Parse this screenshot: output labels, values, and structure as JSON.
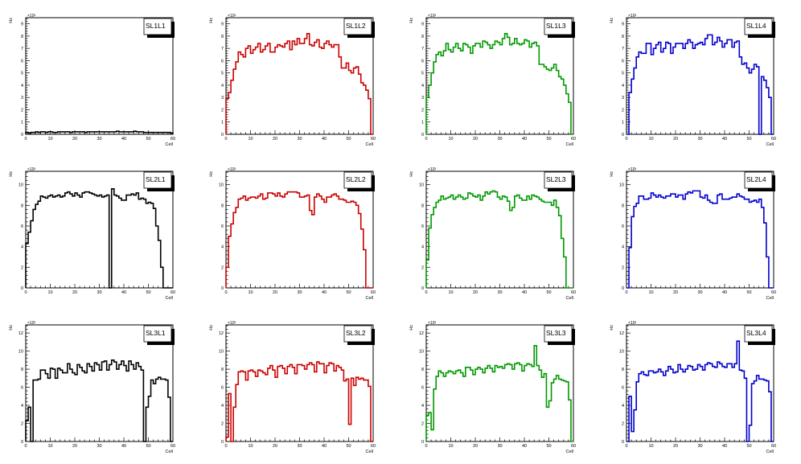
{
  "chart_data": [
    {
      "type": "bar",
      "title": "SL1L1",
      "xlabel": "Cell",
      "ylabel": "Hz",
      "exponent": "×10³",
      "xlim": [
        0,
        60
      ],
      "ylim": [
        0,
        9.5
      ],
      "ytick_step": 1,
      "color": "#000000",
      "x_ticks": [
        0,
        10,
        20,
        30,
        40,
        50,
        60
      ],
      "values": [
        0.15,
        0.1,
        0.15,
        0.15,
        0.2,
        0.15,
        0.2,
        0.2,
        0.15,
        0.2,
        0.2,
        0.15,
        0.15,
        0.2,
        0.2,
        0.2,
        0.2,
        0.2,
        0.15,
        0.2,
        0.2,
        0.2,
        0.2,
        0.2,
        0.15,
        0.2,
        0.2,
        0.2,
        0.2,
        0.2,
        0.2,
        0.2,
        0.2,
        0.2,
        0.2,
        0.2,
        0.2,
        0.25,
        0.2,
        0.2,
        0.2,
        0.2,
        0.2,
        0.2,
        0.25,
        0.2,
        0.2,
        0.2,
        0.15,
        0.15,
        0.15,
        0.15,
        0.15,
        0.15,
        0.15,
        0.15,
        0.15,
        0.15,
        0.15,
        0.1
      ]
    },
    {
      "type": "bar",
      "title": "SL1L2",
      "xlabel": "Cell",
      "ylabel": "Hz",
      "exponent": "×10³",
      "xlim": [
        0,
        60
      ],
      "ylim": [
        0,
        9.5
      ],
      "ytick_step": 1,
      "color": "#cc0000",
      "x_ticks": [
        0,
        10,
        20,
        30,
        40,
        50,
        60
      ],
      "values": [
        2.9,
        3.4,
        4.4,
        5.3,
        5.9,
        6.7,
        6.5,
        6.3,
        7.0,
        7.2,
        6.6,
        6.9,
        7.1,
        7.4,
        6.7,
        6.9,
        7.2,
        7.4,
        6.7,
        6.7,
        7.1,
        7.3,
        7.2,
        7.1,
        7.4,
        7.6,
        6.9,
        7.6,
        7.3,
        7.8,
        7.4,
        7.4,
        7.8,
        8.2,
        7.3,
        7.2,
        7.5,
        7.7,
        7.1,
        7.0,
        7.4,
        7.6,
        7.3,
        7.1,
        7.3,
        7.3,
        6.3,
        5.4,
        5.4,
        5.8,
        5.2,
        5.0,
        5.4,
        5.5,
        4.9,
        4.2,
        4.0,
        3.6,
        2.9,
        0
      ]
    },
    {
      "type": "bar",
      "title": "SL1L3",
      "xlabel": "Cell",
      "ylabel": "Hz",
      "exponent": "×10³",
      "xlim": [
        0,
        60
      ],
      "ylim": [
        0,
        9.5
      ],
      "ytick_step": 1,
      "color": "#009900",
      "x_ticks": [
        0,
        10,
        20,
        30,
        40,
        50,
        60
      ],
      "values": [
        3.0,
        4.0,
        5.0,
        5.9,
        6.5,
        6.7,
        6.4,
        6.8,
        7.4,
        6.9,
        6.7,
        7.1,
        7.4,
        7.0,
        6.8,
        7.4,
        7.3,
        7.1,
        6.6,
        7.2,
        7.4,
        7.4,
        7.1,
        7.6,
        7.5,
        7.3,
        7.0,
        7.3,
        7.6,
        7.5,
        7.3,
        7.8,
        8.2,
        7.9,
        7.3,
        7.4,
        7.8,
        7.4,
        7.3,
        7.4,
        7.7,
        7.6,
        7.1,
        7.4,
        7.5,
        7.2,
        5.7,
        5.7,
        5.5,
        5.3,
        5.2,
        5.4,
        5.7,
        5.2,
        4.7,
        4.5,
        4.0,
        3.3,
        2.6,
        0
      ]
    },
    {
      "type": "bar",
      "title": "SL1L4",
      "xlabel": "Cell",
      "ylabel": "Hz",
      "exponent": "×10³",
      "xlim": [
        0,
        60
      ],
      "ylim": [
        0,
        9.5
      ],
      "ytick_step": 1,
      "color": "#0000cc",
      "x_ticks": [
        0,
        10,
        20,
        30,
        40,
        50,
        60
      ],
      "values": [
        0,
        3.4,
        4.5,
        5.4,
        6.3,
        6.7,
        6.6,
        6.6,
        7.4,
        7.4,
        6.5,
        7.0,
        7.3,
        7.5,
        6.7,
        7.0,
        7.5,
        7.4,
        6.6,
        7.1,
        7.4,
        7.4,
        7.4,
        7.0,
        7.4,
        7.7,
        7.5,
        7.0,
        7.3,
        7.4,
        7.5,
        7.3,
        7.8,
        8.1,
        8.1,
        7.3,
        7.5,
        7.9,
        7.6,
        7.1,
        7.4,
        7.7,
        7.7,
        7.1,
        7.5,
        7.6,
        6.3,
        5.7,
        5.8,
        5.4,
        5.0,
        5.3,
        5.7,
        5.5,
        0,
        4.7,
        4.4,
        3.8,
        3.0,
        0
      ]
    },
    {
      "type": "bar",
      "title": "SL2L1",
      "xlabel": "Cell",
      "ylabel": "Hz",
      "exponent": "×10³",
      "xlim": [
        0,
        60
      ],
      "ylim": [
        0,
        11.3
      ],
      "ytick_step": 2,
      "color": "#000000",
      "x_ticks": [
        0,
        10,
        20,
        30,
        40,
        50,
        60
      ],
      "values": [
        4.3,
        5.4,
        6.5,
        7.6,
        8.1,
        8.4,
        8.9,
        8.8,
        8.7,
        8.9,
        9.0,
        8.8,
        8.9,
        9.0,
        8.8,
        8.9,
        9.2,
        9.3,
        9.1,
        8.9,
        9.2,
        9.0,
        8.8,
        9.2,
        9.3,
        9.3,
        9.2,
        9.1,
        9.0,
        8.9,
        9.0,
        8.8,
        8.9,
        9.0,
        0,
        9.6,
        9.0,
        8.9,
        8.7,
        8.5,
        8.5,
        9.0,
        9.0,
        9.1,
        9.0,
        9.2,
        8.6,
        8.7,
        8.6,
        8.2,
        8.3,
        8.2,
        7.7,
        6.0,
        4.6,
        2.0,
        0,
        0,
        0,
        0
      ]
    },
    {
      "type": "bar",
      "title": "SL2L2",
      "xlabel": "Cell",
      "ylabel": "Hz",
      "exponent": "×10³",
      "xlim": [
        0,
        60
      ],
      "ylim": [
        0,
        11.3
      ],
      "ytick_step": 2,
      "color": "#cc0000",
      "x_ticks": [
        0,
        10,
        20,
        30,
        40,
        50,
        60
      ],
      "values": [
        2.0,
        5.0,
        6.2,
        7.3,
        7.8,
        8.6,
        8.7,
        8.9,
        8.5,
        8.7,
        8.8,
        8.8,
        8.7,
        8.9,
        9.1,
        8.6,
        8.7,
        9.2,
        9.2,
        9.1,
        8.9,
        9.2,
        8.9,
        8.8,
        9.1,
        9.3,
        9.3,
        9.3,
        9.3,
        9.2,
        8.8,
        8.8,
        8.9,
        9.0,
        7.5,
        7.1,
        8.8,
        9.1,
        8.9,
        8.6,
        8.3,
        8.8,
        8.8,
        9.0,
        9.1,
        8.9,
        8.6,
        8.6,
        8.5,
        8.3,
        8.3,
        8.4,
        8.3,
        8.0,
        7.2,
        5.7,
        3.7,
        0,
        0,
        0
      ]
    },
    {
      "type": "bar",
      "title": "SL2L3",
      "xlabel": "Cell",
      "ylabel": "Hz",
      "exponent": "×10³",
      "xlim": [
        0,
        60
      ],
      "ylim": [
        0,
        11.3
      ],
      "ytick_step": 2,
      "color": "#009900",
      "x_ticks": [
        0,
        10,
        20,
        30,
        40,
        50,
        60
      ],
      "values": [
        2.7,
        5.8,
        7.1,
        7.8,
        8.3,
        8.5,
        8.9,
        8.6,
        8.7,
        8.8,
        9.0,
        8.6,
        8.8,
        9.0,
        8.8,
        8.6,
        8.7,
        9.2,
        9.1,
        8.9,
        8.8,
        9.0,
        8.5,
        8.9,
        9.3,
        9.1,
        9.3,
        9.4,
        9.3,
        8.8,
        8.6,
        8.9,
        8.8,
        8.4,
        7.5,
        7.8,
        8.9,
        9.0,
        8.7,
        8.5,
        8.5,
        8.9,
        8.6,
        9.0,
        8.9,
        8.8,
        8.6,
        8.4,
        8.3,
        8.3,
        8.3,
        8.0,
        8.5,
        7.8,
        7.0,
        4.8,
        3.0,
        0,
        0,
        0
      ]
    },
    {
      "type": "bar",
      "title": "SL2L4",
      "xlabel": "Cell",
      "ylabel": "Hz",
      "exponent": "×10³",
      "xlim": [
        0,
        60
      ],
      "ylim": [
        0,
        11.3
      ],
      "ytick_step": 2,
      "color": "#0000cc",
      "x_ticks": [
        0,
        10,
        20,
        30,
        40,
        50,
        60
      ],
      "values": [
        0,
        3.9,
        6.9,
        7.9,
        8.2,
        8.9,
        8.9,
        8.6,
        8.6,
        8.7,
        9.2,
        9.0,
        8.8,
        9.0,
        8.8,
        8.7,
        8.9,
        8.9,
        9.1,
        9.1,
        8.8,
        9.0,
        9.0,
        8.6,
        9.1,
        9.3,
        9.2,
        9.4,
        9.4,
        9.4,
        8.8,
        8.7,
        9.0,
        8.5,
        8.3,
        8.2,
        8.2,
        9.0,
        9.1,
        8.6,
        8.6,
        8.6,
        8.7,
        8.8,
        8.8,
        9.1,
        8.9,
        8.8,
        8.6,
        8.6,
        8.3,
        8.4,
        8.5,
        8.3,
        8.6,
        7.8,
        6.3,
        3.0,
        0,
        0
      ]
    },
    {
      "type": "bar",
      "title": "SL3L1",
      "xlabel": "Cell",
      "ylabel": "Hz",
      "exponent": "×10³",
      "xlim": [
        0,
        60
      ],
      "ylim": [
        0,
        12.9
      ],
      "ytick_step": 2,
      "color": "#000000",
      "x_ticks": [
        0,
        10,
        20,
        30,
        40,
        50,
        60
      ],
      "values": [
        2.3,
        3.8,
        0,
        6.8,
        6.8,
        6.9,
        7.9,
        7.9,
        7.5,
        7.0,
        8.1,
        8.0,
        7.0,
        8.1,
        7.9,
        7.6,
        7.6,
        8.6,
        8.0,
        7.6,
        7.4,
        8.5,
        8.2,
        7.8,
        7.6,
        8.6,
        8.3,
        7.8,
        8.7,
        8.5,
        7.9,
        8.8,
        8.9,
        7.9,
        8.5,
        9.0,
        8.8,
        8.0,
        8.5,
        8.9,
        8.4,
        7.8,
        8.9,
        8.5,
        8.0,
        8.7,
        8.3,
        7.9,
        0,
        3.8,
        5.0,
        6.8,
        6.4,
        6.9,
        7.1,
        6.9,
        6.9,
        6.8,
        4.9,
        0
      ]
    },
    {
      "type": "bar",
      "title": "SL3L2",
      "xlabel": "Cell",
      "ylabel": "Hz",
      "exponent": "×10³",
      "xlim": [
        0,
        60
      ],
      "ylim": [
        0,
        12.9
      ],
      "ytick_step": 2,
      "color": "#cc0000",
      "x_ticks": [
        0,
        10,
        20,
        30,
        40,
        50,
        60
      ],
      "values": [
        0.5,
        5.3,
        0,
        3.8,
        6.3,
        7.7,
        7.8,
        7.7,
        6.8,
        7.8,
        7.9,
        7.7,
        7.2,
        7.9,
        7.8,
        7.6,
        7.4,
        8.1,
        8.4,
        7.9,
        7.1,
        8.3,
        8.4,
        8.1,
        7.5,
        8.3,
        8.5,
        8.2,
        7.5,
        8.5,
        8.5,
        8.4,
        8.0,
        8.5,
        8.7,
        8.5,
        7.7,
        8.8,
        8.6,
        8.6,
        7.6,
        8.4,
        8.7,
        8.6,
        7.8,
        8.4,
        8.2,
        7.9,
        6.7,
        6.9,
        1.9,
        7.0,
        6.2,
        7.1,
        6.9,
        7.0,
        6.8,
        6.8,
        6.1,
        0
      ]
    },
    {
      "type": "bar",
      "title": "SL3L3",
      "xlabel": "Cell",
      "ylabel": "Hz",
      "exponent": "×10³",
      "xlim": [
        0,
        60
      ],
      "ylim": [
        0,
        12.9
      ],
      "ytick_step": 2,
      "color": "#009900",
      "x_ticks": [
        0,
        10,
        20,
        30,
        40,
        50,
        60
      ],
      "values": [
        2.9,
        3.2,
        1.3,
        5.8,
        7.2,
        7.8,
        7.6,
        7.2,
        7.6,
        7.8,
        7.7,
        7.5,
        7.8,
        7.9,
        7.6,
        7.2,
        8.2,
        8.2,
        7.9,
        7.4,
        8.0,
        8.2,
        8.0,
        7.6,
        8.1,
        8.4,
        8.1,
        7.7,
        8.4,
        8.2,
        8.3,
        8.1,
        8.5,
        8.6,
        8.5,
        8.0,
        8.6,
        8.7,
        8.5,
        7.8,
        8.4,
        8.6,
        8.5,
        8.3,
        10.6,
        8.4,
        7.9,
        7.1,
        7.5,
        3.8,
        4.5,
        6.5,
        6.9,
        7.3,
        6.9,
        6.8,
        6.7,
        6.6,
        4.6,
        0
      ]
    },
    {
      "type": "bar",
      "title": "SL3L4",
      "xlabel": "Cell",
      "ylabel": "Hz",
      "exponent": "×10³",
      "xlim": [
        0,
        60
      ],
      "ylim": [
        0,
        12.9
      ],
      "ytick_step": 2,
      "color": "#0000cc",
      "x_ticks": [
        0,
        10,
        20,
        30,
        40,
        50,
        60
      ],
      "values": [
        0,
        5.0,
        1.1,
        3.5,
        6.6,
        7.5,
        7.7,
        7.4,
        7.3,
        7.8,
        7.8,
        7.6,
        7.7,
        8.0,
        7.7,
        7.3,
        7.8,
        8.3,
        8.0,
        7.6,
        7.7,
        8.5,
        8.0,
        7.7,
        8.0,
        8.4,
        8.3,
        7.9,
        8.0,
        8.5,
        8.3,
        7.9,
        8.5,
        8.7,
        8.6,
        8.3,
        8.2,
        8.8,
        8.6,
        8.3,
        8.2,
        8.6,
        8.6,
        8.2,
        8.6,
        11.1,
        7.9,
        7.8,
        7.0,
        0,
        1.8,
        6.4,
        6.7,
        7.3,
        6.9,
        6.9,
        6.8,
        6.7,
        5.5,
        0
      ]
    }
  ]
}
